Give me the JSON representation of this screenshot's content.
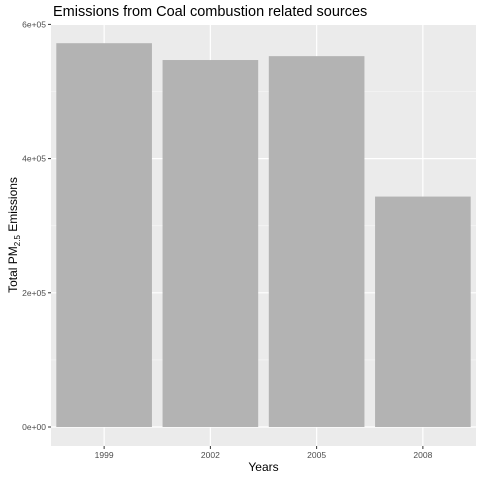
{
  "chart_data": {
    "type": "bar",
    "title": "Emissions from Coal combustion related sources",
    "xlabel": "Years",
    "ylabel": {
      "prefix": "Total PM",
      "subscript": "2.5",
      "suffix": " Emissions"
    },
    "categories": [
      "1999",
      "2002",
      "2005",
      "2008"
    ],
    "values": [
      572000,
      546900,
      552700,
      343400
    ],
    "ylim": [
      0,
      610000
    ],
    "yticks": [
      0,
      200000,
      400000,
      600000
    ],
    "ytick_labels": [
      "0e+00",
      "2e+05",
      "4e+05",
      "6e+05"
    ],
    "grid": true,
    "colors": {
      "bar": "#b3b3b3",
      "panel": "#ebebeb",
      "grid_major": "#ffffff",
      "grid_minor": "#f5f5f5",
      "tick_text": "#4d4d4d"
    }
  }
}
